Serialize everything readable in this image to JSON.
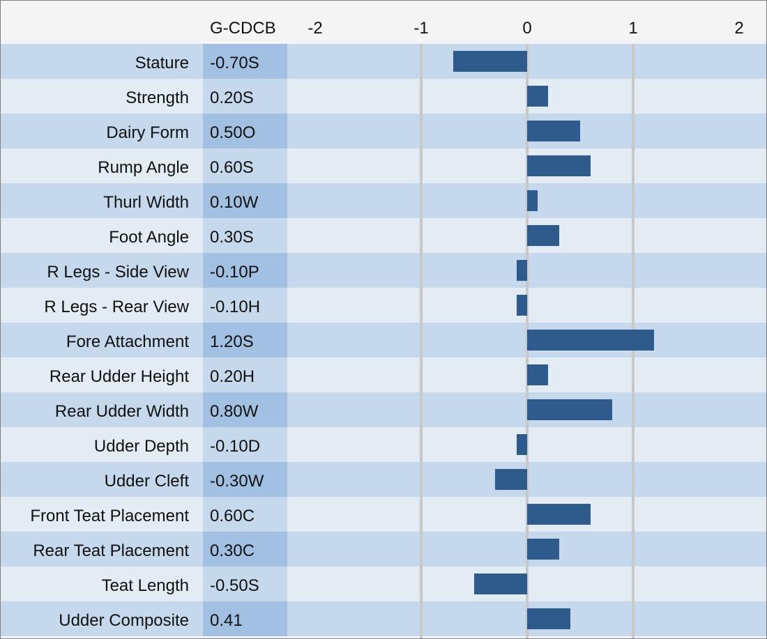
{
  "chart_data": {
    "type": "bar",
    "orientation": "horizontal",
    "column_header": "G-CDCB",
    "xlim": [
      -2,
      2
    ],
    "x_ticks": [
      "-2",
      "-1",
      "0",
      "1",
      "2"
    ],
    "grid": true,
    "categories": [
      "Stature",
      "Strength",
      "Dairy Form",
      "Rump Angle",
      "Thurl Width",
      "Foot Angle",
      "R Legs - Side View",
      "R Legs - Rear View",
      "Fore Attachment",
      "Rear Udder Height",
      "Rear Udder Width",
      "Udder Depth",
      "Udder Cleft",
      "Front Teat Placement",
      "Rear Teat Placement",
      "Teat Length",
      "Udder Composite"
    ],
    "labels": [
      "-0.70S",
      "0.20S",
      "0.50O",
      "0.60S",
      "0.10W",
      "0.30S",
      "-0.10P",
      "-0.10H",
      "1.20S",
      "0.20H",
      "0.80W",
      "-0.10D",
      "-0.30W",
      "0.60C",
      "0.30C",
      "-0.50S",
      "0.41"
    ],
    "values": [
      -0.7,
      0.2,
      0.5,
      0.6,
      0.1,
      0.3,
      -0.1,
      -0.1,
      1.2,
      0.2,
      0.8,
      -0.1,
      -0.3,
      0.6,
      0.3,
      -0.5,
      0.41
    ]
  },
  "colors": {
    "bar": "#2f5a8c",
    "gridline": "#c8c8c8"
  }
}
